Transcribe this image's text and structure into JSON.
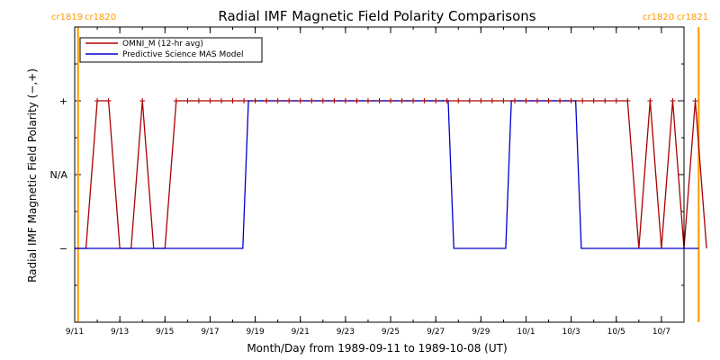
{
  "chart_data": {
    "type": "line",
    "title": "Radial IMF Magnetic Field Polarity Comparisons",
    "xlabel": "Month/Day from 1989-09-11 to 1989-10-08 (UT)",
    "ylabel": "Radial IMF Magnetic Field Polarity (−,+)",
    "x_range": [
      "1989-09-11",
      "1989-10-08"
    ],
    "x_ticks": [
      "9/11",
      "9/13",
      "9/15",
      "9/17",
      "9/19",
      "9/21",
      "9/23",
      "9/25",
      "9/27",
      "9/29",
      "10/1",
      "10/3",
      "10/5",
      "10/7"
    ],
    "y_ticks": [
      "+",
      "N/A",
      "−"
    ],
    "y_values_map": {
      "+": 1,
      "N/A": 0,
      "−": -1
    },
    "ylim": [
      -2,
      2
    ],
    "corner_labels": {
      "left_a": "cr1819",
      "left_b": "cr1820",
      "right_a": "cr1820",
      "right_b": "cr1821"
    },
    "carrington_boundaries": [
      0.15,
      27.65
    ],
    "legend": [
      {
        "label": "OMNI_M (12-hr avg)",
        "color": "#aa0000"
      },
      {
        "label": "Predictive Science MAS Model",
        "color": "#0000cc"
      }
    ],
    "series": [
      {
        "name": "OMNI_M (12-hr avg)",
        "color": "#aa0000",
        "x": [
          0.0,
          0.5,
          1.0,
          1.5,
          2.0,
          2.5,
          3.0,
          3.5,
          4.0,
          4.5,
          5.0,
          5.5,
          6.0,
          6.5,
          7.0,
          7.5,
          8.0,
          8.5,
          9.0,
          9.5,
          10.0,
          10.5,
          11.0,
          11.5,
          12.0,
          12.5,
          13.0,
          13.5,
          14.0,
          14.5,
          15.0,
          15.5,
          16.0,
          16.5,
          17.0,
          17.5,
          18.0,
          18.5,
          19.0,
          19.5,
          20.0,
          20.5,
          21.0,
          21.5,
          22.0,
          22.5,
          23.0,
          23.5,
          24.0,
          24.5,
          25.0,
          25.5,
          26.0,
          26.5,
          27.0,
          27.5,
          28.0
        ],
        "y": [
          -1,
          -1,
          1,
          1,
          -1,
          -1,
          1,
          -1,
          -1,
          1,
          1,
          1,
          1,
          1,
          1,
          1,
          1,
          1,
          1,
          1,
          1,
          1,
          1,
          1,
          1,
          1,
          1,
          1,
          1,
          1,
          1,
          1,
          1,
          1,
          1,
          1,
          1,
          1,
          1,
          1,
          1,
          1,
          1,
          1,
          1,
          1,
          1,
          1,
          1,
          1,
          -1,
          1,
          -1,
          1,
          -1,
          1,
          -1
        ]
      },
      {
        "name": "Predictive Science MAS Model",
        "color": "#0000cc",
        "x": [
          0.0,
          7.45,
          7.7,
          16.55,
          16.8,
          19.1,
          19.35,
          22.2,
          22.45,
          27.65
        ],
        "y": [
          -1,
          -1,
          1,
          1,
          -1,
          -1,
          1,
          1,
          -1,
          -1
        ]
      }
    ]
  }
}
